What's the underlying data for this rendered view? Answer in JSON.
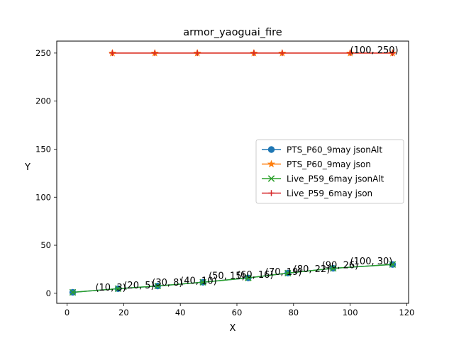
{
  "chart_data": {
    "type": "line",
    "title": "armor_yaoguai_fire",
    "xlabel": "X",
    "ylabel": "Y",
    "xlim": [
      -3.65,
      120.65
    ],
    "ylim": [
      -10.45,
      262.45
    ],
    "xticks": [
      0,
      20,
      40,
      60,
      80,
      100,
      120
    ],
    "yticks": [
      0,
      50,
      100,
      150,
      200,
      250
    ],
    "legend_position": "center-right",
    "series": [
      {
        "name": "PTS_P60_9may jsonAlt",
        "color": "#1f77b4",
        "marker": "circle",
        "x": [
          2,
          18,
          32,
          48,
          64,
          78,
          94,
          115
        ],
        "y": [
          1,
          4.8,
          7.6,
          11.5,
          16,
          21,
          26,
          30
        ]
      },
      {
        "name": "PTS_P60_9may json",
        "color": "#ff7f0e",
        "marker": "star",
        "x": [
          16,
          31,
          46,
          66,
          76,
          100,
          115
        ],
        "y": [
          250,
          250,
          250,
          250,
          250,
          250,
          250
        ]
      },
      {
        "name": "Live_P59_6may jsonAlt",
        "color": "#2ca02c",
        "marker": "x",
        "x": [
          2,
          18,
          32,
          48,
          64,
          78,
          94,
          115
        ],
        "y": [
          1,
          4.8,
          7.6,
          11.5,
          16,
          21,
          26,
          30
        ]
      },
      {
        "name": "Live_P59_6may json",
        "color": "#d62728",
        "marker": "plus",
        "x": [
          16,
          31,
          46,
          66,
          76,
          100,
          115
        ],
        "y": [
          250,
          250,
          250,
          250,
          250,
          250,
          250
        ]
      }
    ],
    "annotations": [
      {
        "text": "(10, 3)",
        "x": 10,
        "y": 3
      },
      {
        "text": "(20, 5)",
        "x": 20,
        "y": 5
      },
      {
        "text": "(30, 8)",
        "x": 30,
        "y": 8
      },
      {
        "text": "(40, 10)",
        "x": 40,
        "y": 10
      },
      {
        "text": "(50, 15)",
        "x": 50,
        "y": 15
      },
      {
        "text": "(60, 16)",
        "x": 60,
        "y": 16
      },
      {
        "text": "(70, 19)",
        "x": 70,
        "y": 19
      },
      {
        "text": "(80, 22)",
        "x": 80,
        "y": 22
      },
      {
        "text": "(90, 26)",
        "x": 90,
        "y": 26
      },
      {
        "text": "(100, 30)",
        "x": 100,
        "y": 30
      },
      {
        "text": "(100, 250)",
        "x": 100,
        "y": 250
      }
    ]
  }
}
